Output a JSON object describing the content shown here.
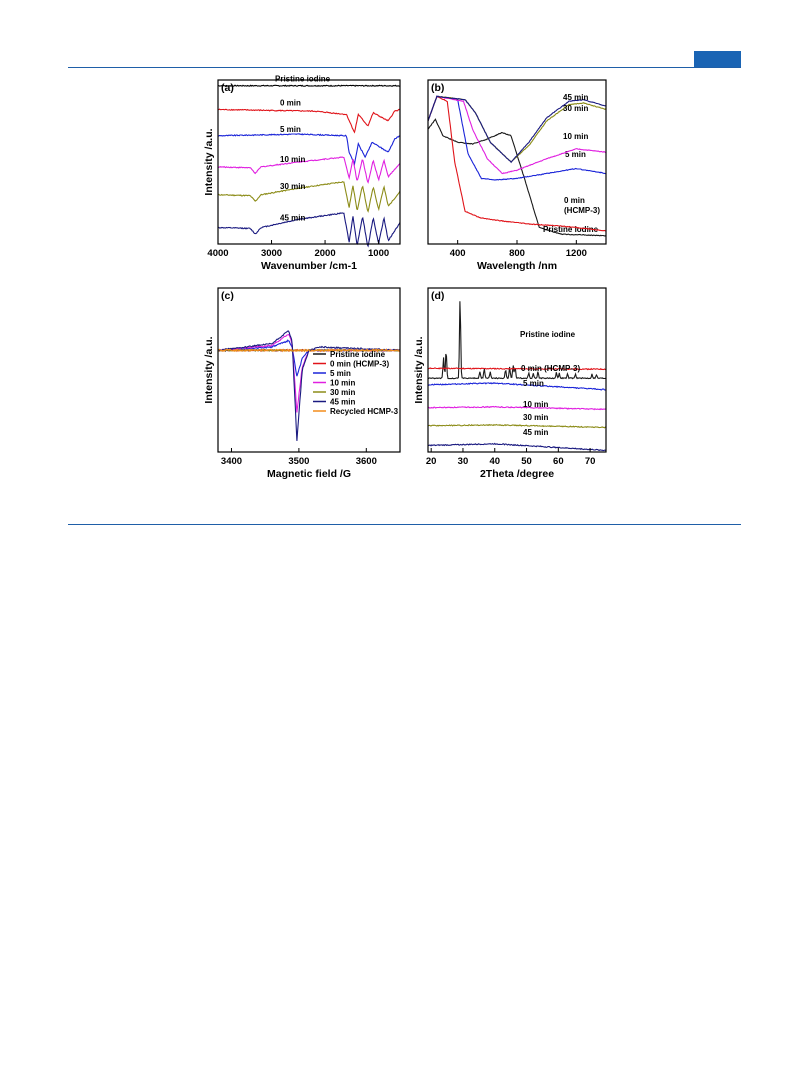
{
  "header": {
    "accent_color": "#1a64b4",
    "rule_color": "#1f5fa8"
  },
  "chart_data": [
    {
      "panel": "(a)",
      "type": "line",
      "xlabel": "Wavenumber /cm-1",
      "ylabel": "Intensity /a.u.",
      "xlim": [
        4000,
        600
      ],
      "x_reversed": true,
      "xticks": [
        4000,
        3000,
        2000,
        1000
      ],
      "grid": false,
      "series": [
        {
          "name": "Pristine iodine",
          "color": "#000000",
          "annotation": "Pristine iodine",
          "baseline": 0.965,
          "points": [
            [
              4000,
              0
            ],
            [
              600,
              0
            ]
          ]
        },
        {
          "name": "0 min",
          "color": "#e0141a",
          "annotation": "0 min",
          "baseline": 0.82,
          "points": [
            [
              4000,
              0
            ],
            [
              2200,
              -0.01
            ],
            [
              1600,
              -0.03
            ],
            [
              1450,
              -0.14
            ],
            [
              1380,
              -0.03
            ],
            [
              1200,
              -0.1
            ],
            [
              1100,
              -0.02
            ],
            [
              820,
              -0.07
            ],
            [
              700,
              -0.01
            ],
            [
              600,
              0
            ]
          ]
        },
        {
          "name": "5 min",
          "color": "#1a24d8",
          "annotation": "5 min",
          "baseline": 0.66,
          "points": [
            [
              4000,
              0
            ],
            [
              2500,
              0.01
            ],
            [
              1600,
              0
            ],
            [
              1550,
              -0.1
            ],
            [
              1450,
              -0.17
            ],
            [
              1380,
              -0.05
            ],
            [
              1250,
              -0.13
            ],
            [
              1120,
              -0.04
            ],
            [
              820,
              -0.1
            ],
            [
              700,
              -0.02
            ],
            [
              600,
              0
            ]
          ]
        },
        {
          "name": "10 min",
          "color": "#e020e0",
          "annotation": "10 min",
          "baseline": 0.47,
          "points": [
            [
              4000,
              0
            ],
            [
              3400,
              -0.005
            ],
            [
              3300,
              -0.04
            ],
            [
              3200,
              0
            ],
            [
              2500,
              0.03
            ],
            [
              1650,
              0.06
            ],
            [
              1550,
              -0.07
            ],
            [
              1480,
              0.05
            ],
            [
              1400,
              -0.09
            ],
            [
              1300,
              0.05
            ],
            [
              1200,
              -0.1
            ],
            [
              1100,
              0.04
            ],
            [
              1000,
              -0.08
            ],
            [
              900,
              0.04
            ],
            [
              820,
              -0.06
            ],
            [
              600,
              0.02
            ]
          ]
        },
        {
          "name": "30 min",
          "color": "#8c8c18",
          "annotation": "30 min",
          "baseline": 0.3,
          "points": [
            [
              4000,
              0
            ],
            [
              3400,
              -0.005
            ],
            [
              3300,
              -0.04
            ],
            [
              3200,
              0
            ],
            [
              2500,
              0.04
            ],
            [
              1650,
              0.08
            ],
            [
              1550,
              -0.08
            ],
            [
              1480,
              0.06
            ],
            [
              1400,
              -0.1
            ],
            [
              1300,
              0.06
            ],
            [
              1200,
              -0.11
            ],
            [
              1100,
              0.05
            ],
            [
              1000,
              -0.09
            ],
            [
              900,
              0.05
            ],
            [
              820,
              -0.07
            ],
            [
              600,
              0.02
            ]
          ]
        },
        {
          "name": "45 min",
          "color": "#1a1a80",
          "annotation": "45 min",
          "baseline": 0.1,
          "points": [
            [
              4000,
              0
            ],
            [
              3400,
              -0.005
            ],
            [
              3300,
              -0.04
            ],
            [
              3200,
              0
            ],
            [
              2500,
              0.05
            ],
            [
              1650,
              0.09
            ],
            [
              1550,
              -0.09
            ],
            [
              1480,
              0.07
            ],
            [
              1400,
              -0.11
            ],
            [
              1300,
              0.07
            ],
            [
              1200,
              -0.12
            ],
            [
              1100,
              0.06
            ],
            [
              1000,
              -0.1
            ],
            [
              900,
              0.06
            ],
            [
              820,
              -0.08
            ],
            [
              600,
              0.03
            ]
          ]
        }
      ]
    },
    {
      "panel": "(b)",
      "type": "line",
      "xlabel": "Wavelength /nm",
      "ylabel": "",
      "xlim": [
        200,
        1400
      ],
      "xticks": [
        400,
        800,
        1200
      ],
      "grid": false,
      "series": [
        {
          "name": "Pristine iodine",
          "color": "#1a1a1a",
          "annotation": "Pristine iodine",
          "baseline": 0,
          "points": [
            [
              200,
              0.7
            ],
            [
              250,
              0.76
            ],
            [
              300,
              0.66
            ],
            [
              400,
              0.62
            ],
            [
              500,
              0.61
            ],
            [
              600,
              0.64
            ],
            [
              700,
              0.68
            ],
            [
              760,
              0.66
            ],
            [
              850,
              0.4
            ],
            [
              950,
              0.1
            ],
            [
              1100,
              0.06
            ],
            [
              1400,
              0.05
            ]
          ]
        },
        {
          "name": "0 min (HCMP-3)",
          "color": "#e0141a",
          "annotation": "0 min (HCMP-3)",
          "baseline": 0,
          "points": [
            [
              200,
              0.75
            ],
            [
              260,
              0.9
            ],
            [
              330,
              0.87
            ],
            [
              380,
              0.5
            ],
            [
              450,
              0.2
            ],
            [
              550,
              0.16
            ],
            [
              700,
              0.14
            ],
            [
              900,
              0.12
            ],
            [
              1100,
              0.11
            ],
            [
              1400,
              0.08
            ]
          ]
        },
        {
          "name": "5 min",
          "color": "#1a24d8",
          "annotation": "5 min",
          "baseline": 0,
          "points": [
            [
              200,
              0.75
            ],
            [
              260,
              0.9
            ],
            [
              400,
              0.88
            ],
            [
              470,
              0.55
            ],
            [
              560,
              0.4
            ],
            [
              650,
              0.39
            ],
            [
              800,
              0.4
            ],
            [
              1000,
              0.43
            ],
            [
              1200,
              0.46
            ],
            [
              1400,
              0.43
            ]
          ]
        },
        {
          "name": "10 min",
          "color": "#e020e0",
          "annotation": "10 min",
          "baseline": 0,
          "points": [
            [
              200,
              0.75
            ],
            [
              260,
              0.9
            ],
            [
              440,
              0.87
            ],
            [
              500,
              0.7
            ],
            [
              600,
              0.52
            ],
            [
              700,
              0.43
            ],
            [
              800,
              0.45
            ],
            [
              1000,
              0.52
            ],
            [
              1200,
              0.58
            ],
            [
              1400,
              0.56
            ]
          ]
        },
        {
          "name": "30 min",
          "color": "#8c8c18",
          "annotation": "30 min",
          "baseline": 0,
          "points": [
            [
              200,
              0.75
            ],
            [
              260,
              0.9
            ],
            [
              450,
              0.88
            ],
            [
              520,
              0.8
            ],
            [
              620,
              0.62
            ],
            [
              760,
              0.5
            ],
            [
              880,
              0.6
            ],
            [
              1000,
              0.75
            ],
            [
              1150,
              0.85
            ],
            [
              1250,
              0.86
            ],
            [
              1400,
              0.82
            ]
          ]
        },
        {
          "name": "45 min",
          "color": "#1a1a80",
          "annotation": "45 min",
          "baseline": 0,
          "points": [
            [
              200,
              0.75
            ],
            [
              260,
              0.9
            ],
            [
              450,
              0.88
            ],
            [
              520,
              0.8
            ],
            [
              620,
              0.62
            ],
            [
              760,
              0.5
            ],
            [
              880,
              0.62
            ],
            [
              1000,
              0.77
            ],
            [
              1150,
              0.87
            ],
            [
              1250,
              0.88
            ],
            [
              1400,
              0.84
            ]
          ]
        }
      ]
    },
    {
      "panel": "(c)",
      "type": "line",
      "xlabel": "Magnetic field /G",
      "ylabel": "Intensity /a.u.",
      "xlim": [
        3380,
        3650
      ],
      "xticks": [
        3400,
        3500,
        3600
      ],
      "grid": false,
      "legend_position": "center-right",
      "series": [
        {
          "name": "Pristine iodine",
          "color": "#1a1a1a",
          "baseline": 0,
          "points": [
            [
              3380,
              0
            ],
            [
              3650,
              0
            ]
          ]
        },
        {
          "name": "0 min (HCMP-3)",
          "color": "#e0141a",
          "baseline": 0,
          "points": [
            [
              3380,
              0
            ],
            [
              3650,
              0
            ]
          ]
        },
        {
          "name": "5 min",
          "color": "#1a24d8",
          "baseline": 0,
          "points": [
            [
              3380,
              0
            ],
            [
              3460,
              0.02
            ],
            [
              3485,
              0.06
            ],
            [
              3490,
              0.02
            ],
            [
              3497,
              -0.16
            ],
            [
              3505,
              -0.05
            ],
            [
              3515,
              0
            ],
            [
              3650,
              0
            ]
          ]
        },
        {
          "name": "10 min",
          "color": "#e020e0",
          "baseline": 0,
          "points": [
            [
              3380,
              0
            ],
            [
              3460,
              0.03
            ],
            [
              3485,
              0.1
            ],
            [
              3490,
              0.04
            ],
            [
              3497,
              -0.38
            ],
            [
              3505,
              -0.1
            ],
            [
              3515,
              0
            ],
            [
              3650,
              0
            ]
          ]
        },
        {
          "name": "30 min",
          "color": "#8c8c18",
          "baseline": 0,
          "points": [
            [
              3380,
              0
            ],
            [
              3650,
              0
            ]
          ]
        },
        {
          "name": "45 min",
          "color": "#1a1a80",
          "baseline": 0,
          "points": [
            [
              3380,
              0
            ],
            [
              3460,
              0.04
            ],
            [
              3485,
              0.12
            ],
            [
              3490,
              0.05
            ],
            [
              3497,
              -0.55
            ],
            [
              3505,
              -0.12
            ],
            [
              3515,
              0
            ],
            [
              3530,
              0.02
            ],
            [
              3650,
              0
            ]
          ]
        },
        {
          "name": "Recycled HCMP-3",
          "color": "#f28c1a",
          "baseline": 0,
          "points": [
            [
              3380,
              0
            ],
            [
              3650,
              0
            ]
          ]
        }
      ]
    },
    {
      "panel": "(d)",
      "type": "line",
      "xlabel": "2Theta /degree",
      "ylabel": "Intensity /a.u.",
      "xlim": [
        19,
        75
      ],
      "xticks": [
        20,
        30,
        40,
        50,
        60,
        70
      ],
      "grid": false,
      "series": [
        {
          "name": "Pristine iodine",
          "color": "#1a1a1a",
          "annotation": "Pristine iodine",
          "baseline": 0.45,
          "peaks": [
            [
              23.9,
              0.25
            ],
            [
              24.7,
              0.35
            ],
            [
              29.1,
              1.0
            ],
            [
              35.3,
              0.08
            ],
            [
              36.7,
              0.12
            ],
            [
              38.6,
              0.08
            ],
            [
              43.4,
              0.1
            ],
            [
              44.7,
              0.14
            ],
            [
              45.8,
              0.16
            ],
            [
              46.4,
              0.14
            ],
            [
              50.7,
              0.06
            ],
            [
              52.1,
              0.06
            ],
            [
              53.6,
              0.08
            ],
            [
              59.4,
              0.07
            ],
            [
              60.3,
              0.06
            ],
            [
              62.9,
              0.05
            ],
            [
              65.4,
              0.05
            ],
            [
              70.6,
              0.05
            ],
            [
              72.0,
              0.04
            ]
          ]
        },
        {
          "name": "0 min (HCMP-3)",
          "color": "#e0141a",
          "annotation": "0 min (HCMP-3)",
          "baseline": 0.51,
          "points": [
            [
              19,
              0
            ],
            [
              75,
              -0.005
            ]
          ]
        },
        {
          "name": "5 min",
          "color": "#1a24d8",
          "annotation": "5 min",
          "baseline": 0.41,
          "points": [
            [
              19,
              0
            ],
            [
              40,
              0.01
            ],
            [
              75,
              -0.03
            ]
          ]
        },
        {
          "name": "10 min",
          "color": "#e020e0",
          "annotation": "10 min",
          "baseline": 0.27,
          "points": [
            [
              19,
              0
            ],
            [
              40,
              0.005
            ],
            [
              75,
              -0.01
            ]
          ]
        },
        {
          "name": "30 min",
          "color": "#8c8c18",
          "annotation": "30 min",
          "baseline": 0.16,
          "points": [
            [
              19,
              0
            ],
            [
              40,
              0.005
            ],
            [
              75,
              -0.01
            ]
          ]
        },
        {
          "name": "45 min",
          "color": "#1a1a80",
          "annotation": "45 min",
          "baseline": 0.04,
          "points": [
            [
              19,
              0
            ],
            [
              40,
              0.01
            ],
            [
              75,
              -0.03
            ]
          ]
        }
      ]
    }
  ]
}
